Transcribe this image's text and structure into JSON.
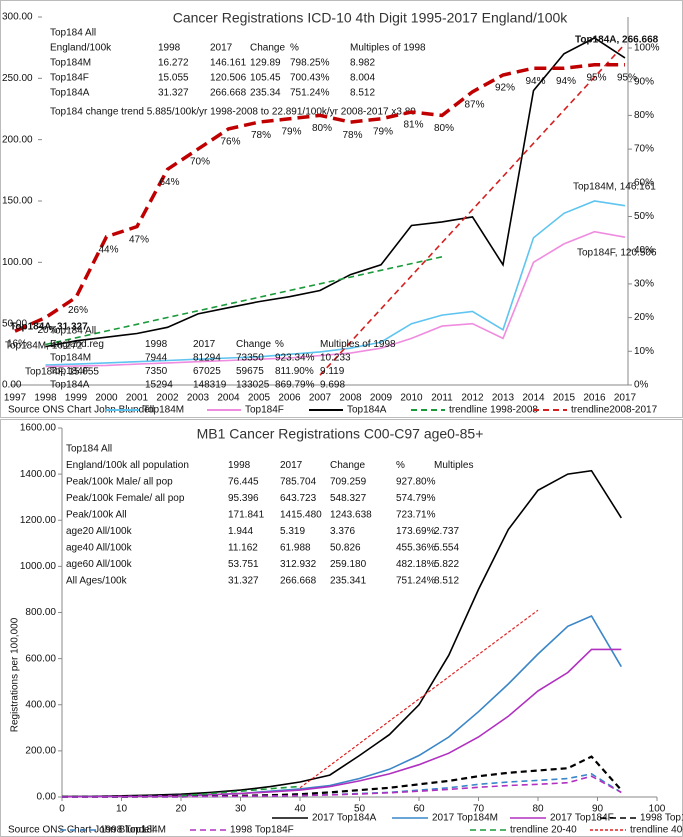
{
  "chart_data": [
    {
      "type": "line",
      "title": "Cancer Registrations ICD-10 4th Digit 1995-2017 England/100k",
      "categories": [
        "1997",
        "1998",
        "1999",
        "2000",
        "2001",
        "2002",
        "2003",
        "2004",
        "2005",
        "2006",
        "2007",
        "2008",
        "2009",
        "2010",
        "2011",
        "2012",
        "2013",
        "2014",
        "2015",
        "2016",
        "2017"
      ],
      "ylim": [
        0,
        300
      ],
      "yticks": [
        {
          "value": 0,
          "label": "0.00"
        },
        {
          "value": 50,
          "label": "50.00"
        },
        {
          "value": 100,
          "label": "100.00"
        },
        {
          "value": 150,
          "label": "150.00"
        },
        {
          "value": 200,
          "label": "200.00"
        },
        {
          "value": 250,
          "label": "250.00"
        },
        {
          "value": 300,
          "label": "300.00"
        }
      ],
      "y2lim": [
        0,
        109.2
      ],
      "y2ticks": [
        {
          "value": 0,
          "label": "0%"
        },
        {
          "value": 10,
          "label": "10%"
        },
        {
          "value": 20,
          "label": "20%"
        },
        {
          "value": 30,
          "label": "30%"
        },
        {
          "value": 40,
          "label": "40%"
        },
        {
          "value": 50,
          "label": "50%"
        },
        {
          "value": 60,
          "label": "60%"
        },
        {
          "value": 70,
          "label": "70%"
        },
        {
          "value": 80,
          "label": "80%"
        },
        {
          "value": 90,
          "label": "90%"
        },
        {
          "value": 100,
          "label": "100%"
        }
      ],
      "series": [
        {
          "name": "Top184M",
          "color": "#5ec4f0",
          "style": "solid",
          "values": [
            null,
            16.272,
            17,
            18,
            19,
            20,
            21,
            22,
            23,
            25,
            27,
            30,
            35,
            50,
            57,
            60,
            45,
            120,
            140,
            150,
            146.161
          ]
        },
        {
          "name": "Top184F",
          "color": "#f08ce0",
          "style": "solid",
          "values": [
            null,
            15.055,
            15.5,
            16,
            17,
            18,
            19,
            20,
            21,
            22,
            24,
            26,
            30,
            38,
            48,
            50,
            38,
            100,
            115,
            125,
            120.506
          ]
        },
        {
          "name": "Top184A",
          "color": "#000000",
          "style": "solid",
          "values": [
            null,
            31.327,
            36,
            39,
            42,
            47,
            58,
            63,
            68,
            72,
            77,
            90,
            98,
            130,
            133,
            137,
            98,
            240,
            270,
            283,
            266.668
          ]
        },
        {
          "name": "trendline 1998-2008",
          "color": "#1a9a3a",
          "style": "dashed",
          "values": [
            null,
            33,
            38.5,
            44,
            49.5,
            55,
            60.5,
            66,
            71.5,
            77,
            82.5,
            88,
            93.5,
            99,
            104.5,
            null,
            null,
            null,
            null,
            null,
            null
          ]
        },
        {
          "name": "trendline2008-2017",
          "color": "#d61f1f",
          "style": "dashed",
          "values": [
            null,
            null,
            null,
            null,
            null,
            null,
            null,
            null,
            null,
            null,
            8,
            35,
            62,
            89,
            116,
            143,
            170,
            197,
            224,
            251,
            278
          ]
        },
        {
          "color": "#c00000",
          "style": "thick",
          "axis": "y2",
          "values": [
            16,
            20,
            26,
            44,
            47,
            64,
            70,
            76,
            78,
            79,
            80,
            78,
            79,
            81,
            80,
            87,
            92,
            94,
            94,
            95,
            95
          ],
          "value_labels": [
            "16%",
            "20%",
            "26%",
            "44%",
            "47%",
            "64%",
            "70%",
            "76%",
            "78%",
            "79%",
            "80%",
            "78%",
            "79%",
            "81%",
            "80%",
            "87%",
            "92%",
            "94%",
            "94%",
            "95%",
            "95%"
          ]
        }
      ],
      "tables": [
        {
          "title": "Top184 All",
          "rows": [
            [
              "England/100k",
              "1998",
              "2017",
              "Change",
              "%",
              "Multiples of 1998"
            ],
            [
              "Top184M",
              "16.272",
              "146.161",
              "129.89",
              "798.25%",
              "8.982"
            ],
            [
              "Top184F",
              "15.055",
              "120.506",
              "105.45",
              "700.43%",
              "8.004"
            ],
            [
              "Top184A",
              "31.327",
              "266.668",
              "235.34",
              "751.24%",
              "8.512"
            ]
          ]
        },
        {
          "title": "Top184 All",
          "rows": [
            [
              "England.reg",
              "1998",
              "2017",
              "Change",
              "%",
              "Multiples of 1998"
            ],
            [
              "Top184M",
              "7944",
              "81294",
              "73350",
              "923.34%",
              "10.233"
            ],
            [
              "Top184F",
              "7350",
              "67025",
              "59675",
              "811.90%",
              "9.119"
            ],
            [
              "Top184A",
              "15294",
              "148319",
              "133025",
              "869.79%",
              "9.698"
            ]
          ]
        }
      ],
      "trend_note": "Top184 change trend 5.885/100k/yr 1998-2008 to 22.891/100k/yr 2008-2017 x3.89",
      "annotations": [
        "Top184A, 266.668",
        "Top184M, 146.161",
        "Top184F, 120.506",
        "Top184A, 31.327",
        "Top184M, 16.272",
        "Top184F, 15.055"
      ],
      "source": "Source ONS Chart John Blundell"
    },
    {
      "type": "line",
      "title": "MB1 Cancer Registrations C00-C97 age0-85+",
      "y_label": "Registrations per 100,000",
      "x": [
        0,
        5,
        10,
        15,
        20,
        25,
        30,
        35,
        40,
        45,
        50,
        55,
        60,
        65,
        70,
        75,
        80,
        85,
        89,
        94
      ],
      "xlim": [
        0,
        100
      ],
      "xticks": [
        0,
        10,
        20,
        30,
        40,
        50,
        60,
        70,
        80,
        90,
        100
      ],
      "ylim": [
        0,
        1600
      ],
      "yticks": [
        {
          "value": 0,
          "label": "0.00"
        },
        {
          "value": 200,
          "label": "200.00"
        },
        {
          "value": 400,
          "label": "400.00"
        },
        {
          "value": 600,
          "label": "600.00"
        },
        {
          "value": 800,
          "label": "800.00"
        },
        {
          "value": 1000,
          "label": "1000.00"
        },
        {
          "value": 1200,
          "label": "1200.00"
        },
        {
          "value": 1400,
          "label": "1400.00"
        },
        {
          "value": 1600,
          "label": "1600.00"
        }
      ],
      "series": [
        {
          "name": "2017 Top184A",
          "color": "#000000",
          "style": "solid",
          "values": [
            2,
            3,
            5,
            8,
            12,
            20,
            30,
            45,
            65,
            95,
            180,
            270,
            400,
            615,
            900,
            1160,
            1330,
            1400,
            1415,
            1210
          ]
        },
        {
          "name": "2017 Top184M",
          "color": "#3a86c8",
          "style": "solid",
          "values": [
            1,
            2,
            3,
            4,
            6,
            10,
            15,
            25,
            35,
            50,
            80,
            120,
            180,
            260,
            370,
            490,
            620,
            740,
            785,
            565
          ]
        },
        {
          "name": "2017 Top184F",
          "color": "#b030c0",
          "style": "solid",
          "values": [
            1,
            2,
            3,
            4,
            6,
            10,
            15,
            22,
            30,
            45,
            70,
            100,
            140,
            190,
            260,
            350,
            460,
            540,
            640,
            640
          ]
        },
        {
          "name": "1998 Top184A",
          "color": "#000000",
          "style": "dashed",
          "values": [
            1,
            1,
            1,
            2,
            2,
            3,
            5,
            8,
            12,
            20,
            30,
            40,
            55,
            70,
            90,
            105,
            115,
            125,
            175,
            30
          ]
        },
        {
          "name": "1998 Top184M",
          "color": "#3a86c8",
          "style": "dashed",
          "values": [
            0,
            0,
            1,
            1,
            1,
            2,
            3,
            4,
            6,
            10,
            15,
            20,
            30,
            40,
            55,
            65,
            72,
            80,
            100,
            20
          ]
        },
        {
          "name": "1998 Top184F",
          "color": "#b030c0",
          "style": "dashed",
          "values": [
            0,
            0,
            1,
            1,
            1,
            2,
            3,
            4,
            6,
            9,
            13,
            18,
            25,
            33,
            42,
            50,
            55,
            62,
            90,
            20
          ]
        },
        {
          "name": "trendline 20-40",
          "color": "#1a9a3a",
          "style": "dashed",
          "values": [
            null,
            null,
            null,
            null,
            5,
            15,
            25,
            36,
            46,
            null,
            null,
            null,
            null,
            null,
            null,
            null,
            null,
            null,
            null,
            null
          ]
        },
        {
          "name": "trendline 40-70",
          "color": "#e02020",
          "style": "dotted",
          "values": [
            null,
            null,
            null,
            null,
            null,
            null,
            null,
            null,
            40,
            136,
            232,
            329,
            425,
            521,
            618,
            714,
            810,
            null,
            null,
            null
          ]
        }
      ],
      "tables": [
        {
          "title": "Top184 All",
          "row_colors": [
            null,
            "#3a86c8",
            "#b030c0",
            null,
            null,
            null,
            null,
            null
          ],
          "rows": [
            [
              "England/100k all population",
              "1998",
              "2017",
              "Change",
              "%",
              "Multiples"
            ],
            [
              "Peak/100k Male/ all pop",
              "76.445",
              "785.704",
              "709.259",
              "927.80%",
              null
            ],
            [
              "Peak/100k Female/ all pop",
              "95.396",
              "643.723",
              "548.327",
              "574.79%",
              null
            ],
            [
              "Peak/100k All",
              "171.841",
              "1415.480",
              "1243.638",
              "723.71%",
              null
            ],
            [
              "age20 All/100k",
              "1.944",
              "5.319",
              "3.376",
              "173.69%",
              "2.737"
            ],
            [
              "age40 All/100k",
              "11.162",
              "61.988",
              "50.826",
              "455.36%",
              "5.554"
            ],
            [
              "age60 All/100k",
              "53.751",
              "312.932",
              "259.180",
              "482.18%",
              "5.822"
            ],
            [
              "All Ages/100k",
              "31.327",
              "266.668",
              "235.341",
              "751.24%",
              "8.512"
            ]
          ]
        }
      ],
      "source": "Source ONS Chart John Blundell"
    }
  ]
}
